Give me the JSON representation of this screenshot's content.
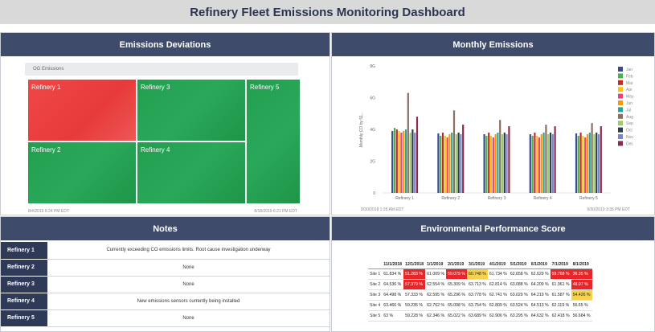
{
  "dashboard": {
    "title": "Refinery Fleet Emissions Monitoring Dashboard"
  },
  "emissions_deviations": {
    "title": "Emissions Deviations",
    "group_label": "OG Emissions",
    "tiles": [
      {
        "label": "Refinery 1",
        "status": "alert",
        "color": "#ec4141"
      },
      {
        "label": "Refinery 3",
        "status": "ok",
        "color": "#27a455"
      },
      {
        "label": "Refinery 5",
        "status": "ok",
        "color": "#27a455"
      },
      {
        "label": "Refinery 2",
        "status": "ok",
        "color": "#27a455"
      },
      {
        "label": "Refinery 4",
        "status": "ok",
        "color": "#27a455"
      }
    ],
    "start_time": "8/4/2019 6:24 PM  EDT",
    "end_time": "8/18/2019 6:21 PM  EDT"
  },
  "monthly_emissions": {
    "title": "Monthly Emissions",
    "start_time": "9/30/2018 1:35 AM  EDT",
    "end_time": "9/30/2019 3:35 PM  EDT"
  },
  "chart_data": {
    "type": "bar",
    "ylabel": "Monthly CO by 51...",
    "ylim": [
      0,
      8
    ],
    "yticks": [
      "0",
      "2G",
      "4G",
      "6G",
      "8G"
    ],
    "categories": [
      "Refinery 1",
      "Refinery 2",
      "Refinery 3",
      "Refinery 4",
      "Refinery 5"
    ],
    "legend_position": "right",
    "series": [
      {
        "name": "Jan",
        "color": "#3a4b8f",
        "values": [
          3.9,
          3.75,
          3.7,
          3.7,
          3.75
        ]
      },
      {
        "name": "Feb",
        "color": "#4caf50",
        "values": [
          4.1,
          3.6,
          3.6,
          3.6,
          3.6
        ]
      },
      {
        "name": "Mar",
        "color": "#c62828",
        "values": [
          4.0,
          3.8,
          3.8,
          3.8,
          3.8
        ]
      },
      {
        "name": "Apr",
        "color": "#ffc107",
        "values": [
          3.9,
          3.6,
          3.6,
          3.6,
          3.6
        ]
      },
      {
        "name": "May",
        "color": "#ec407a",
        "values": [
          3.8,
          3.5,
          3.5,
          3.5,
          3.5
        ]
      },
      {
        "name": "Jun",
        "color": "#ff9800",
        "values": [
          3.9,
          3.7,
          3.7,
          3.7,
          3.7
        ]
      },
      {
        "name": "Jul",
        "color": "#26a69a",
        "values": [
          4.0,
          3.8,
          3.8,
          3.8,
          3.8
        ]
      },
      {
        "name": "Aug",
        "color": "#8d6e63",
        "values": [
          6.3,
          5.2,
          4.6,
          4.3,
          4.4
        ]
      },
      {
        "name": "Sep",
        "color": "#9ccc65",
        "values": [
          3.8,
          3.7,
          3.7,
          3.7,
          3.7
        ]
      },
      {
        "name": "Oct",
        "color": "#2c3e50",
        "values": [
          4.0,
          3.8,
          3.8,
          3.8,
          3.8
        ]
      },
      {
        "name": "Nov",
        "color": "#7986cb",
        "values": [
          3.8,
          3.7,
          3.7,
          3.7,
          3.7
        ]
      },
      {
        "name": "Dec",
        "color": "#8e2a4a",
        "values": [
          4.8,
          4.3,
          4.2,
          4.2,
          4.2
        ]
      }
    ]
  },
  "notes": {
    "title": "Notes",
    "rows": [
      {
        "name": "Refinery 1",
        "note": "Currently exceeding CO emissions limits.  Root cause investigation underway"
      },
      {
        "name": "Refinery 2",
        "note": "None"
      },
      {
        "name": "Refinery 3",
        "note": "None"
      },
      {
        "name": "Refinery 4",
        "note": "New emissions sensors currently being installed"
      },
      {
        "name": "Refinery 5",
        "note": "None"
      }
    ]
  },
  "performance": {
    "title": "Environmental Performance Score",
    "headers": [
      "11/1/2018",
      "12/1/2018",
      "1/1/2019",
      "2/1/2019",
      "3/1/2019",
      "4/1/2019",
      "5/1/2019",
      "6/1/2019",
      "7/1/2019",
      "8/1/2019"
    ],
    "rows": [
      {
        "site": "Site 1",
        "cells": [
          {
            "v": "61.834 %",
            "s": ""
          },
          {
            "v": "51.283 %",
            "s": "red"
          },
          {
            "v": "61.009 %",
            "s": ""
          },
          {
            "v": "59.079 %",
            "s": "red"
          },
          {
            "v": "60.748 %",
            "s": "yel"
          },
          {
            "v": "61.734 %",
            "s": ""
          },
          {
            "v": "62.658 %",
            "s": ""
          },
          {
            "v": "62.629 %",
            "s": ""
          },
          {
            "v": "59.768 %",
            "s": "red"
          },
          {
            "v": "36.35 %",
            "s": "red"
          }
        ]
      },
      {
        "site": "Site 2",
        "cells": [
          {
            "v": "64.536 %",
            "s": ""
          },
          {
            "v": "57.379 %",
            "s": "red"
          },
          {
            "v": "62.554 %",
            "s": ""
          },
          {
            "v": "65.309 %",
            "s": ""
          },
          {
            "v": "63.713 %",
            "s": ""
          },
          {
            "v": "62.814 %",
            "s": ""
          },
          {
            "v": "63.088 %",
            "s": ""
          },
          {
            "v": "64.209 %",
            "s": ""
          },
          {
            "v": "61.961 %",
            "s": ""
          },
          {
            "v": "48.07 %",
            "s": "red"
          }
        ]
      },
      {
        "site": "Site 3",
        "cells": [
          {
            "v": "64.498 %",
            "s": ""
          },
          {
            "v": "57.333 %",
            "s": ""
          },
          {
            "v": "62.595 %",
            "s": ""
          },
          {
            "v": "65.296 %",
            "s": ""
          },
          {
            "v": "63.778 %",
            "s": ""
          },
          {
            "v": "62.741 %",
            "s": ""
          },
          {
            "v": "63.029 %",
            "s": ""
          },
          {
            "v": "64.219 %",
            "s": ""
          },
          {
            "v": "61.587 %",
            "s": ""
          },
          {
            "v": "54.426 %",
            "s": "yel"
          }
        ]
      },
      {
        "site": "Site 4",
        "cells": [
          {
            "v": "63.466 %",
            "s": ""
          },
          {
            "v": "59.235 %",
            "s": ""
          },
          {
            "v": "62.762 %",
            "s": ""
          },
          {
            "v": "65.098 %",
            "s": ""
          },
          {
            "v": "63.754 %",
            "s": ""
          },
          {
            "v": "62.809 %",
            "s": ""
          },
          {
            "v": "63.524 %",
            "s": ""
          },
          {
            "v": "64.513 %",
            "s": ""
          },
          {
            "v": "62.119 %",
            "s": ""
          },
          {
            "v": "56.65 %",
            "s": ""
          }
        ]
      },
      {
        "site": "Site 5",
        "cells": [
          {
            "v": "63 %",
            "s": ""
          },
          {
            "v": "59.228 %",
            "s": ""
          },
          {
            "v": "62.346 %",
            "s": ""
          },
          {
            "v": "65.022 %",
            "s": ""
          },
          {
            "v": "63.689 %",
            "s": ""
          },
          {
            "v": "62.906 %",
            "s": ""
          },
          {
            "v": "63.295 %",
            "s": ""
          },
          {
            "v": "64.632 %",
            "s": ""
          },
          {
            "v": "62.418 %",
            "s": ""
          },
          {
            "v": "56.684 %",
            "s": ""
          }
        ]
      }
    ]
  }
}
